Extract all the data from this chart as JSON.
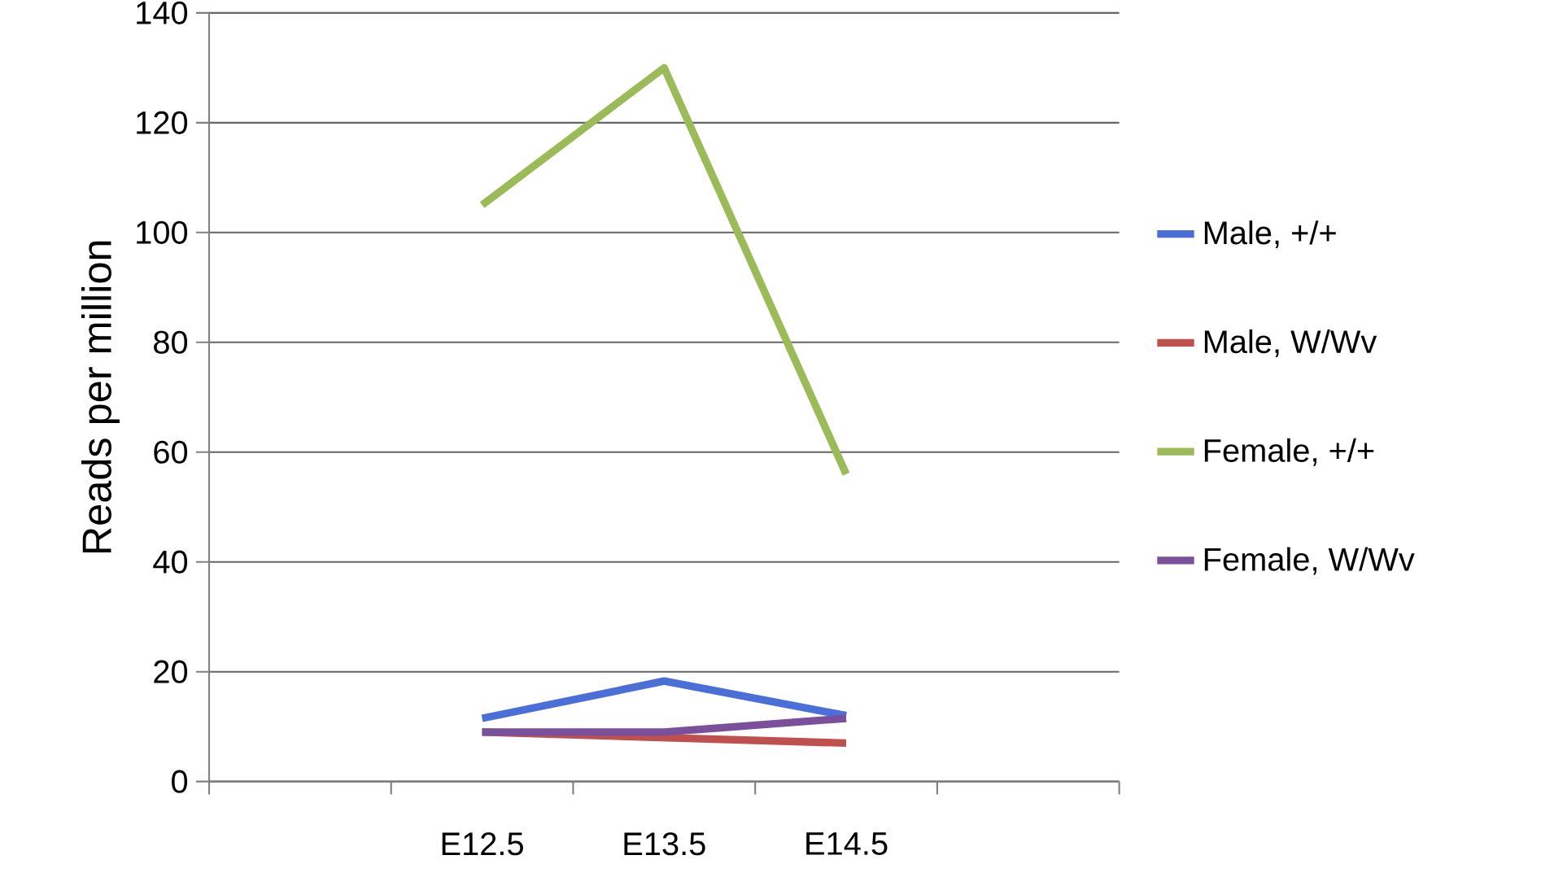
{
  "chart_data": {
    "type": "line",
    "ylabel": "Reads per million",
    "categories": [
      null,
      "E12.5",
      "E13.5",
      "E14.5",
      null
    ],
    "series": [
      {
        "name": "Male, +/+",
        "color": "#4a6fd8",
        "values": [
          null,
          11.5,
          18.3,
          12,
          null
        ]
      },
      {
        "name": "Male, W/Wv",
        "color": "#c0504d",
        "values": [
          null,
          9,
          8,
          7,
          null
        ]
      },
      {
        "name": "Female, +/+",
        "color": "#9bbb59",
        "values": [
          null,
          105,
          130,
          56,
          null
        ]
      },
      {
        "name": "Female, W/Wv",
        "color": "#7a4f9c",
        "values": [
          null,
          9,
          9,
          11.5,
          null
        ]
      }
    ],
    "ylim": [
      0,
      140
    ],
    "yticks": [
      0,
      20,
      40,
      60,
      80,
      100,
      120,
      140
    ],
    "grid": "y",
    "legend": "right",
    "marker": "none",
    "line_style": "solid"
  }
}
